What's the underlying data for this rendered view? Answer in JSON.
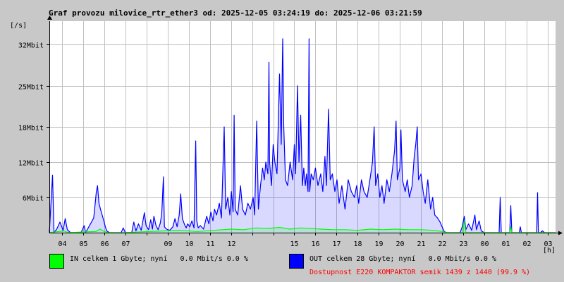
{
  "header": {
    "title": "Graf provozu milovice_rtr_ether3 od: 2025-12-05 03:24:19 do: 2025-12-06 03:21:59",
    "y_unit": "[/s]",
    "x_unit": "[h]"
  },
  "colors": {
    "background": "#c8c8c8",
    "plot_bg": "#ffffff",
    "grid": "#c0c0c0",
    "in_color": "#00ff00",
    "out_color": "#0000ff",
    "avail_color": "#ff0000"
  },
  "chart_data": {
    "type": "area",
    "title": "Graf provozu milovice_rtr_ether3 od: 2025-12-05 03:24:19 do: 2025-12-06 03:21:59",
    "xlabel": "[h]",
    "ylabel": "[/s]",
    "y_unit": "Mbit/s",
    "ylim": [
      0,
      36
    ],
    "y_ticks": [
      {
        "value": 6,
        "label": "6Mbit"
      },
      {
        "value": 12,
        "label": "12Mbit"
      },
      {
        "value": 18,
        "label": "18Mbit"
      },
      {
        "value": 25,
        "label": "25Mbit"
      },
      {
        "value": 32,
        "label": "32Mbit"
      }
    ],
    "x_range_hours": [
      3.4,
      27.37
    ],
    "x_ticks": [
      {
        "hour": 4,
        "label": "04"
      },
      {
        "hour": 5,
        "label": "05"
      },
      {
        "hour": 6,
        "label": "06"
      },
      {
        "hour": 7,
        "label": "07"
      },
      {
        "hour": 8,
        "label": ""
      },
      {
        "hour": 9,
        "label": "09"
      },
      {
        "hour": 10,
        "label": "10"
      },
      {
        "hour": 11,
        "label": "11"
      },
      {
        "hour": 12,
        "label": "12"
      },
      {
        "hour": 13,
        "label": ""
      },
      {
        "hour": 14,
        "label": ""
      },
      {
        "hour": 15,
        "label": "15"
      },
      {
        "hour": 16,
        "label": "16"
      },
      {
        "hour": 17,
        "label": "17"
      },
      {
        "hour": 18,
        "label": "18"
      },
      {
        "hour": 19,
        "label": "19"
      },
      {
        "hour": 20,
        "label": "20"
      },
      {
        "hour": 21,
        "label": "21"
      },
      {
        "hour": 22,
        "label": "22"
      },
      {
        "hour": 23,
        "label": "23"
      },
      {
        "hour": 24,
        "label": "00"
      },
      {
        "hour": 25,
        "label": "01"
      },
      {
        "hour": 26,
        "label": "02"
      },
      {
        "hour": 27,
        "label": "03"
      }
    ],
    "grid": true,
    "series": [
      {
        "name": "OUT",
        "color": "#0000ff",
        "points": [
          [
            3.4,
            0
          ],
          [
            3.55,
            9.8
          ],
          [
            3.62,
            0
          ],
          [
            3.75,
            0.6
          ],
          [
            3.9,
            1.8
          ],
          [
            4.05,
            0.4
          ],
          [
            4.15,
            2.4
          ],
          [
            4.25,
            0.5
          ],
          [
            4.4,
            0
          ],
          [
            4.9,
            0
          ],
          [
            5.05,
            1.2
          ],
          [
            5.12,
            0
          ],
          [
            5.5,
            2.5
          ],
          [
            5.55,
            4.2
          ],
          [
            5.62,
            6.8
          ],
          [
            5.68,
            8.0
          ],
          [
            5.75,
            5.0
          ],
          [
            5.82,
            4.0
          ],
          [
            5.9,
            3.0
          ],
          [
            5.98,
            2.0
          ],
          [
            6.05,
            1.0
          ],
          [
            6.12,
            0.3
          ],
          [
            6.25,
            0
          ],
          [
            6.8,
            0
          ],
          [
            6.9,
            0.8
          ],
          [
            7.0,
            0
          ],
          [
            7.3,
            0
          ],
          [
            7.4,
            1.8
          ],
          [
            7.5,
            0.3
          ],
          [
            7.62,
            1.5
          ],
          [
            7.75,
            0.4
          ],
          [
            7.9,
            3.4
          ],
          [
            7.98,
            1.2
          ],
          [
            8.1,
            0.5
          ],
          [
            8.2,
            2.2
          ],
          [
            8.28,
            0.6
          ],
          [
            8.35,
            2.8
          ],
          [
            8.45,
            1.2
          ],
          [
            8.55,
            0.5
          ],
          [
            8.65,
            1.6
          ],
          [
            8.72,
            3.2
          ],
          [
            8.8,
            9.5
          ],
          [
            8.85,
            1.0
          ],
          [
            8.95,
            0.6
          ],
          [
            9.1,
            0.4
          ],
          [
            9.25,
            1.0
          ],
          [
            9.35,
            2.4
          ],
          [
            9.45,
            1.0
          ],
          [
            9.55,
            3.0
          ],
          [
            9.62,
            6.6
          ],
          [
            9.7,
            2.4
          ],
          [
            9.8,
            1.4
          ],
          [
            9.88,
            0.8
          ],
          [
            9.95,
            1.5
          ],
          [
            10.05,
            1.0
          ],
          [
            10.15,
            2.0
          ],
          [
            10.25,
            0.8
          ],
          [
            10.33,
            15.6
          ],
          [
            10.38,
            2.0
          ],
          [
            10.45,
            0.8
          ],
          [
            10.55,
            1.2
          ],
          [
            10.7,
            0.6
          ],
          [
            10.85,
            2.8
          ],
          [
            10.95,
            1.5
          ],
          [
            11.05,
            3.5
          ],
          [
            11.15,
            2.0
          ],
          [
            11.22,
            4.0
          ],
          [
            11.32,
            3.0
          ],
          [
            11.45,
            5.0
          ],
          [
            11.55,
            2.5
          ],
          [
            11.68,
            18.0
          ],
          [
            11.75,
            4.0
          ],
          [
            11.85,
            6.0
          ],
          [
            11.95,
            3.0
          ],
          [
            12.02,
            7.0
          ],
          [
            12.1,
            3.5
          ],
          [
            12.15,
            20.0
          ],
          [
            12.2,
            4.0
          ],
          [
            12.32,
            3.0
          ],
          [
            12.45,
            8.0
          ],
          [
            12.55,
            4.0
          ],
          [
            12.68,
            3.0
          ],
          [
            12.8,
            5.0
          ],
          [
            12.92,
            4.0
          ],
          [
            13.05,
            6.0
          ],
          [
            13.12,
            3.0
          ],
          [
            13.22,
            19.0
          ],
          [
            13.3,
            4.0
          ],
          [
            13.4,
            8.0
          ],
          [
            13.5,
            11.0
          ],
          [
            13.58,
            9.0
          ],
          [
            13.65,
            12.0
          ],
          [
            13.75,
            10.0
          ],
          [
            13.8,
            29.0
          ],
          [
            13.83,
            12.0
          ],
          [
            13.92,
            8.0
          ],
          [
            14.0,
            15.0
          ],
          [
            14.08,
            12.0
          ],
          [
            14.18,
            10.0
          ],
          [
            14.3,
            27.0
          ],
          [
            14.38,
            15.0
          ],
          [
            14.45,
            33.0
          ],
          [
            14.5,
            18.0
          ],
          [
            14.58,
            9.0
          ],
          [
            14.68,
            8.0
          ],
          [
            14.8,
            12.0
          ],
          [
            14.92,
            9.0
          ],
          [
            15.0,
            15.0
          ],
          [
            15.06,
            10.0
          ],
          [
            15.15,
            25.0
          ],
          [
            15.22,
            12.0
          ],
          [
            15.3,
            20.0
          ],
          [
            15.38,
            8.0
          ],
          [
            15.45,
            11.0
          ],
          [
            15.52,
            8.0
          ],
          [
            15.58,
            10.0
          ],
          [
            15.65,
            7.0
          ],
          [
            15.7,
            33.0
          ],
          [
            15.73,
            7.0
          ],
          [
            15.8,
            10.0
          ],
          [
            15.9,
            9.0
          ],
          [
            16.0,
            11.0
          ],
          [
            16.12,
            8.0
          ],
          [
            16.25,
            10.0
          ],
          [
            16.35,
            7.0
          ],
          [
            16.45,
            13.0
          ],
          [
            16.52,
            8.0
          ],
          [
            16.62,
            21.0
          ],
          [
            16.7,
            9.0
          ],
          [
            16.8,
            10.0
          ],
          [
            16.92,
            7.0
          ],
          [
            17.02,
            9.0
          ],
          [
            17.12,
            5.0
          ],
          [
            17.25,
            8.0
          ],
          [
            17.4,
            4.0
          ],
          [
            17.55,
            9.0
          ],
          [
            17.7,
            7.0
          ],
          [
            17.85,
            6.0
          ],
          [
            17.95,
            8.0
          ],
          [
            18.05,
            5.0
          ],
          [
            18.18,
            9.0
          ],
          [
            18.3,
            7.0
          ],
          [
            18.45,
            6.0
          ],
          [
            18.58,
            9.0
          ],
          [
            18.7,
            12.0
          ],
          [
            18.78,
            18.0
          ],
          [
            18.85,
            8.0
          ],
          [
            18.95,
            10.0
          ],
          [
            19.05,
            6.0
          ],
          [
            19.15,
            8.0
          ],
          [
            19.25,
            5.0
          ],
          [
            19.38,
            9.0
          ],
          [
            19.5,
            7.0
          ],
          [
            19.62,
            10.0
          ],
          [
            19.75,
            14.0
          ],
          [
            19.82,
            19.0
          ],
          [
            19.88,
            9.0
          ],
          [
            20.0,
            11.0
          ],
          [
            20.05,
            17.5
          ],
          [
            20.12,
            9.0
          ],
          [
            20.25,
            7.0
          ],
          [
            20.35,
            9.0
          ],
          [
            20.45,
            6.0
          ],
          [
            20.58,
            8.0
          ],
          [
            20.68,
            13.0
          ],
          [
            20.75,
            15.0
          ],
          [
            20.82,
            18.0
          ],
          [
            20.88,
            9.0
          ],
          [
            21.0,
            10.0
          ],
          [
            21.1,
            7.0
          ],
          [
            21.2,
            5.0
          ],
          [
            21.32,
            9.0
          ],
          [
            21.45,
            4.0
          ],
          [
            21.55,
            6.0
          ],
          [
            21.65,
            3.0
          ],
          [
            21.78,
            2.5
          ],
          [
            21.9,
            1.8
          ],
          [
            22.0,
            1.0
          ],
          [
            22.1,
            0.2
          ],
          [
            22.2,
            0
          ],
          [
            22.85,
            0
          ],
          [
            22.95,
            1.0
          ],
          [
            23.05,
            2.8
          ],
          [
            23.12,
            0.5
          ],
          [
            23.25,
            1.5
          ],
          [
            23.4,
            0.4
          ],
          [
            23.55,
            3.0
          ],
          [
            23.62,
            0.5
          ],
          [
            23.75,
            2.0
          ],
          [
            23.85,
            0.3
          ],
          [
            24.0,
            0
          ],
          [
            24.7,
            0
          ],
          [
            24.75,
            6.0
          ],
          [
            24.8,
            0
          ],
          [
            25.2,
            0
          ],
          [
            25.25,
            4.6
          ],
          [
            25.3,
            0
          ],
          [
            25.65,
            0
          ],
          [
            25.7,
            1.0
          ],
          [
            25.75,
            0
          ],
          [
            26.48,
            0
          ],
          [
            26.52,
            6.8
          ],
          [
            26.56,
            0
          ],
          [
            26.65,
            0
          ],
          [
            26.75,
            0.3
          ],
          [
            26.85,
            0
          ],
          [
            27.37,
            0
          ]
        ]
      },
      {
        "name": "IN",
        "color": "#00ff00",
        "points": [
          [
            3.4,
            0
          ],
          [
            3.6,
            0.1
          ],
          [
            4.1,
            0.3
          ],
          [
            4.3,
            0
          ],
          [
            5.6,
            0.2
          ],
          [
            5.8,
            0.6
          ],
          [
            6.0,
            0.2
          ],
          [
            6.2,
            0
          ],
          [
            7.0,
            0
          ],
          [
            7.5,
            0.1
          ],
          [
            8.8,
            0.3
          ],
          [
            9.6,
            0.4
          ],
          [
            10.4,
            0.2
          ],
          [
            11.2,
            0.4
          ],
          [
            12.0,
            0.6
          ],
          [
            12.6,
            0.5
          ],
          [
            13.2,
            0.8
          ],
          [
            13.7,
            0.7
          ],
          [
            14.3,
            0.9
          ],
          [
            14.8,
            0.6
          ],
          [
            15.3,
            0.8
          ],
          [
            15.8,
            0.7
          ],
          [
            16.3,
            0.6
          ],
          [
            16.8,
            0.5
          ],
          [
            17.4,
            0.5
          ],
          [
            18.0,
            0.4
          ],
          [
            18.6,
            0.6
          ],
          [
            19.2,
            0.5
          ],
          [
            19.8,
            0.6
          ],
          [
            20.4,
            0.5
          ],
          [
            21.0,
            0.5
          ],
          [
            21.6,
            0.4
          ],
          [
            22.0,
            0.2
          ],
          [
            22.2,
            0
          ],
          [
            22.95,
            0
          ],
          [
            23.05,
            2.0
          ],
          [
            23.12,
            0
          ],
          [
            25.2,
            0
          ],
          [
            25.25,
            1.0
          ],
          [
            25.3,
            0
          ],
          [
            27.37,
            0
          ]
        ]
      }
    ]
  },
  "legend": {
    "in_text": "IN celkem 1 Gbyte; nyní   0.0 Mbit/s 0.0 %",
    "out_text": "OUT celkem 28 Gbyte; nyní   0.0 Mbit/s 0.0 %",
    "availability": "Dostupnost E220 KOMPAKTOR semik 1439 z 1440 (99.9 %)"
  }
}
